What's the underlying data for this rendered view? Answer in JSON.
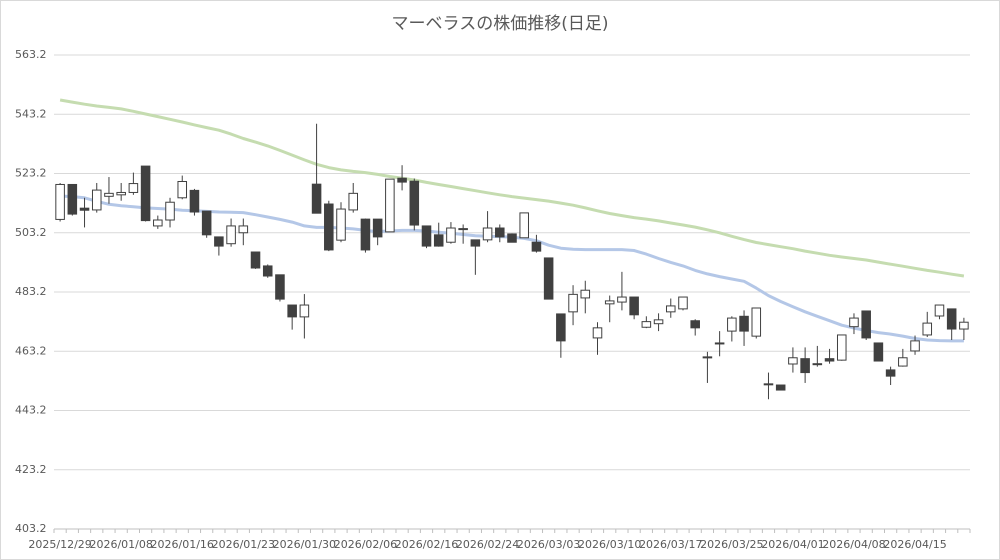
{
  "chart_data": {
    "type": "candlestick",
    "title": "マーベラスの株価推移(日足)",
    "categories": [
      "2025/12/29",
      null,
      null,
      null,
      null,
      "2026/01/08",
      null,
      null,
      null,
      null,
      "2026/01/16",
      null,
      null,
      null,
      null,
      "2026/01/23",
      null,
      null,
      null,
      null,
      "2026/01/30",
      null,
      null,
      null,
      null,
      "2026/02/06",
      null,
      null,
      null,
      null,
      "2026/02/16",
      null,
      null,
      null,
      null,
      "2026/02/24",
      null,
      null,
      null,
      null,
      "2026/03/03",
      null,
      null,
      null,
      null,
      "2026/03/10",
      null,
      null,
      null,
      null,
      "2026/03/17",
      null,
      null,
      null,
      null,
      "2026/03/25",
      null,
      null,
      null,
      null,
      "2026/04/01",
      null,
      null,
      null,
      null,
      "2026/04/08",
      null,
      null,
      null,
      null,
      "2026/04/15",
      null,
      null,
      null,
      null
    ],
    "open": [
      507.7,
      519.5,
      511.5,
      510.9,
      515.5,
      516,
      516.8,
      525.7,
      505.5,
      507.5,
      515,
      517.5,
      510.5,
      501.8,
      499.5,
      503.2,
      496.7,
      492,
      489,
      478.8,
      474.8,
      519.6,
      512.9,
      500.7,
      510.9,
      507.8,
      507.8,
      503.5,
      521.6,
      520.6,
      505.5,
      502.5,
      500,
      504.3,
      500.8,
      500.8,
      504.8,
      502.8,
      501.5,
      500,
      494.7,
      475.8,
      476.5,
      481.2,
      467.7,
      479.2,
      479.8,
      481.5,
      471.3,
      472.5,
      476.5,
      477.5,
      473.5,
      461,
      465.8,
      470,
      475,
      468.3,
      451.9,
      451.8,
      458.9,
      460.7,
      458.9,
      460.7,
      460.2,
      471.5,
      476.8,
      466,
      456.9,
      458.2,
      463.3,
      468.7,
      475.1,
      477.5,
      470.7
    ],
    "high": [
      520,
      519.5,
      515,
      520,
      522,
      520,
      523.5,
      525.7,
      509,
      515,
      522.5,
      518,
      510.5,
      501.8,
      508,
      508,
      496.7,
      492.5,
      489,
      478.8,
      482.5,
      540,
      514,
      513.5,
      520,
      508,
      507.8,
      521.3,
      526,
      521.5,
      505.5,
      506.6,
      506.8,
      506,
      500.8,
      510.5,
      506,
      503,
      509.9,
      502.5,
      494.7,
      475.8,
      485.5,
      487,
      473,
      482,
      490,
      481.5,
      475,
      476,
      481,
      481.5,
      474,
      463,
      470,
      475,
      477,
      477.8,
      456,
      451.8,
      464.5,
      464.5,
      465,
      464,
      468.7,
      476,
      476.8,
      466,
      458,
      464,
      468.5,
      476.5,
      478.8,
      477.5,
      474.5
    ],
    "low": [
      507,
      509,
      505,
      510,
      513,
      514,
      516,
      507,
      504.5,
      505,
      514.5,
      509,
      501.5,
      495.5,
      498.5,
      499,
      491,
      488,
      480,
      470.5,
      467.5,
      509.8,
      497,
      500,
      510,
      496.5,
      499,
      503.5,
      517.5,
      504,
      498,
      498.5,
      499.5,
      499.5,
      489,
      500,
      500,
      500,
      501.5,
      496.5,
      480.8,
      461,
      472,
      476,
      462,
      473,
      477,
      474,
      471,
      470,
      474.5,
      477,
      468.5,
      452.5,
      461.5,
      466.5,
      465,
      467.5,
      447,
      450,
      456,
      452.5,
      458,
      459,
      460,
      469,
      467,
      459.9,
      451.8,
      458,
      462,
      468,
      474,
      467,
      467
    ],
    "close": [
      519.5,
      509.5,
      510.8,
      517.6,
      516.5,
      516.8,
      519.8,
      507.3,
      507.5,
      513.5,
      520.5,
      510.2,
      502.5,
      498.7,
      505.5,
      505.5,
      491.3,
      488.6,
      480.8,
      474.8,
      478.8,
      509.8,
      497.4,
      511.2,
      516.5,
      497.4,
      501.8,
      521.3,
      520.3,
      505.8,
      498.7,
      498.7,
      504.8,
      504.6,
      498.7,
      504.8,
      501.8,
      500,
      509.9,
      497,
      480.8,
      466.7,
      482.4,
      483.8,
      471.1,
      480.2,
      481.5,
      475.5,
      473.2,
      473.8,
      478.5,
      481.5,
      471.1,
      461.3,
      466,
      474.4,
      470,
      477.8,
      452.2,
      450.1,
      461,
      456,
      459,
      459.9,
      468.7,
      474.4,
      467.7,
      459.9,
      454.8,
      461,
      466.7,
      472.7,
      478.8,
      470.7,
      473
    ],
    "up_color": "#ffffff",
    "down_color": "#404040",
    "edge_color": "#404040",
    "lines": [
      {
        "color": "#c5dcb0",
        "values": [
          548,
          547.3,
          546.6,
          546,
          545.5,
          545,
          544.2,
          543.3,
          542.4,
          541.5,
          540.6,
          539.6,
          538.7,
          537.8,
          536.5,
          535,
          533.8,
          532.5,
          531,
          529.4,
          527.8,
          526.3,
          525.2,
          524.4,
          523.9,
          523.5,
          522.9,
          522.2,
          521.6,
          521,
          520.2,
          519.5,
          518.8,
          518.1,
          517.4,
          516.7,
          516,
          515.4,
          514.9,
          514.4,
          513.9,
          513.2,
          512.5,
          511.6,
          510.6,
          509.7,
          509,
          508.3,
          507.8,
          507.2,
          506.5,
          505.8,
          505.1,
          504.2,
          503.2,
          502,
          500.9,
          499.9,
          499.2,
          498.5,
          497.8,
          497,
          496.3,
          495.6,
          495,
          494.5,
          494,
          493.3,
          492.6,
          491.9,
          491.2,
          490.5,
          489.9,
          489.2,
          488.6
        ]
      },
      {
        "color": "#b4c7e7",
        "values": [
          515.6,
          515.4,
          515,
          513.8,
          512.8,
          512.3,
          512,
          511.6,
          511.4,
          511.2,
          510.8,
          510.6,
          510.4,
          510.2,
          510.1,
          510,
          509.3,
          508.5,
          507.7,
          506.8,
          505.5,
          505,
          505,
          504.8,
          504.5,
          504,
          503.6,
          503.8,
          504,
          504,
          503.8,
          503.4,
          503,
          502.6,
          502.2,
          502,
          501.9,
          501.7,
          501.3,
          500.5,
          499,
          498,
          497.6,
          497.5,
          497.5,
          497.5,
          497.5,
          497.2,
          496,
          494.5,
          493.2,
          492,
          490.5,
          489.3,
          488.4,
          487.6,
          486.8,
          484.5,
          482,
          480,
          478.2,
          476.5,
          475,
          473.5,
          472,
          471,
          470.2,
          469.5,
          469,
          468.3,
          467.5,
          467,
          466.8,
          466.7,
          466.7
        ]
      }
    ],
    "ylim": [
      403.2,
      563.2
    ],
    "yticks": [
      403.2,
      423.2,
      443.2,
      463.2,
      483.2,
      503.2,
      523.2,
      543.2,
      563.2
    ],
    "grid": true
  }
}
